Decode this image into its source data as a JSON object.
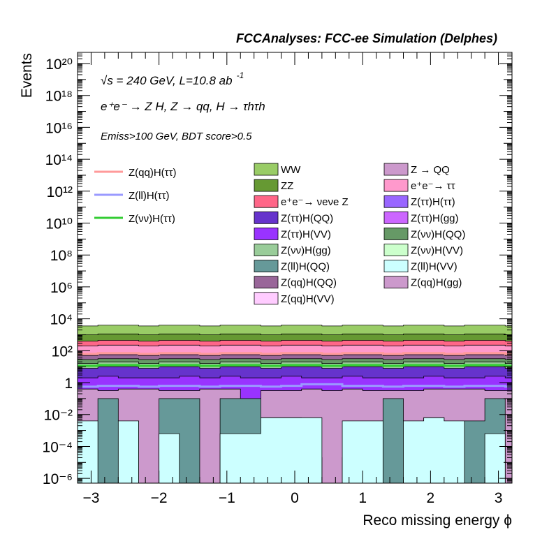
{
  "header": {
    "title": "FCCAnalyses: FCC-ee Simulation (Delphes)"
  },
  "annotations": {
    "line1": "√s = 240 GeV, L=10.8 ab",
    "line1_sup": "-1",
    "line2": "e⁺e⁻ → Z H, Z → qq, H → τhτh",
    "line3": "Emiss>100 GeV, BDT score>0.5"
  },
  "axes": {
    "xlabel": "Reco missing energy ϕ",
    "ylabel": "Events",
    "x_ticks": [
      "−3",
      "−2",
      "−1",
      "0",
      "1",
      "2",
      "3"
    ],
    "y_ticks": [
      "10⁻⁶",
      "10⁻⁴",
      "10⁻²",
      "1",
      "10²",
      "10⁴",
      "10⁶",
      "10⁸",
      "10¹⁰",
      "10¹²",
      "10¹⁴",
      "10¹⁶",
      "10¹⁸",
      "10²⁰"
    ]
  },
  "legend": {
    "signals": [
      {
        "label": "Z(qq)H(ττ)",
        "color": "#ff9a9a"
      },
      {
        "label": "Z(ll)H(ττ)",
        "color": "#9a9aff"
      },
      {
        "label": "Z(νν)H(ττ)",
        "color": "#33cc33"
      }
    ],
    "backgrounds_col1": [
      {
        "label": "WW",
        "color": "#99cc66"
      },
      {
        "label": "ZZ",
        "color": "#669933"
      },
      {
        "label": "e⁺e⁻→ νeνe Z",
        "color": "#ff6688"
      },
      {
        "label": "Z(ττ)H(QQ)",
        "color": "#6633cc"
      },
      {
        "label": "Z(ττ)H(VV)",
        "color": "#9933ff"
      },
      {
        "label": "Z(νν)H(gg)",
        "color": "#99cc99"
      },
      {
        "label": "Z(ll)H(QQ)",
        "color": "#669999"
      },
      {
        "label": "Z(qq)H(QQ)",
        "color": "#996699"
      },
      {
        "label": "Z(qq)H(VV)",
        "color": "#ffccff"
      }
    ],
    "backgrounds_col2": [
      {
        "label": "Z → QQ",
        "color": "#cc99cc"
      },
      {
        "label": "e⁺e⁻→ ττ",
        "color": "#ff99cc"
      },
      {
        "label": "Z(ττ)H(ττ)",
        "color": "#9966ff"
      },
      {
        "label": "Z(ττ)H(gg)",
        "color": "#cc66ff"
      },
      {
        "label": "Z(νν)H(QQ)",
        "color": "#669966"
      },
      {
        "label": "Z(νν)H(VV)",
        "color": "#ccffcc"
      },
      {
        "label": "Z(ll)H(VV)",
        "color": "#ccffff"
      },
      {
        "label": "Z(qq)H(gg)",
        "color": "#cc99cc"
      }
    ]
  },
  "chart_data": {
    "type": "area",
    "title": "FCCAnalyses: FCC-ee Simulation (Delphes)",
    "xlabel": "Reco missing energy ϕ",
    "ylabel": "Events",
    "xlim": [
      -3.2,
      3.2
    ],
    "ylim_log10": [
      -6.3,
      20.7
    ],
    "log_y": true,
    "bin_edges": [
      -3.2,
      -2.9,
      -2.6,
      -2.3,
      -2.0,
      -1.7,
      -1.4,
      -1.1,
      -0.8,
      -0.5,
      -0.2,
      0.1,
      0.4,
      0.7,
      1.0,
      1.3,
      1.6,
      1.9,
      2.2,
      2.5,
      2.8,
      3.1,
      3.2
    ],
    "stack_tops_log10": [
      {
        "name": "Z(ll)H(VV)",
        "color": "#ccffff",
        "values": [
          -2.4,
          -6.5,
          -2.4,
          -6.5,
          -3.2,
          -6.5,
          -6.5,
          -3.2,
          -3.2,
          -2.2,
          -2.2,
          -2.2,
          -6.5,
          -2.4,
          -2.4,
          -6.5,
          -2.4,
          -2.2,
          -2.4,
          -6.5,
          -3.2,
          -6.5
        ]
      },
      {
        "name": "Z(ll)H(QQ)",
        "color": "#669999",
        "values": [
          -2.4,
          -1.0,
          -2.4,
          -6.5,
          -1.0,
          -1.0,
          -6.5,
          -1.0,
          -1.0,
          -2.2,
          -2.2,
          -4.7,
          -6.5,
          -4.7,
          -2.4,
          -1.0,
          -2.4,
          -2.2,
          -2.4,
          -2.4,
          -1.0,
          -6.5
        ]
      },
      {
        "name": "Z(qq)H(gg)",
        "color": "#cc99cc",
        "values": [
          -0.4,
          -0.5,
          -0.4,
          -0.4,
          -0.5,
          -0.5,
          -0.4,
          -0.4,
          -1.0,
          -0.5,
          -0.5,
          -0.4,
          -0.5,
          -0.4,
          -0.5,
          -0.5,
          -0.5,
          -0.4,
          -0.4,
          -0.4,
          -0.5,
          -0.5
        ]
      },
      {
        "name": "Z(ττ)H(VV)",
        "color": "#9933ff",
        "values": [
          0.3,
          0.4,
          0.3,
          0.3,
          0.3,
          0.4,
          0.3,
          0.4,
          0.3,
          0.3,
          0.4,
          0.3,
          0.3,
          0.4,
          0.3,
          0.3,
          0.3,
          0.4,
          0.3,
          0.3,
          0.4,
          0.3
        ]
      },
      {
        "name": "Z(ττ)H(QQ)",
        "color": "#6633cc",
        "values": [
          0.9,
          1.0,
          1.0,
          0.9,
          1.0,
          1.0,
          0.9,
          1.0,
          1.0,
          0.9,
          1.0,
          1.0,
          0.9,
          1.0,
          1.0,
          0.9,
          1.0,
          1.0,
          0.9,
          1.0,
          1.0,
          0.9
        ]
      },
      {
        "name": "Z(νν)H(gg)",
        "color": "#99cc99",
        "values": [
          1.2,
          1.3,
          1.3,
          1.2,
          1.3,
          1.3,
          1.2,
          1.3,
          1.3,
          1.2,
          1.3,
          1.3,
          1.2,
          1.3,
          1.3,
          1.2,
          1.3,
          1.3,
          1.2,
          1.3,
          1.3,
          1.2
        ]
      },
      {
        "name": "Z(νν)H(QQ)",
        "color": "#669966",
        "values": [
          1.45,
          1.5,
          1.5,
          1.45,
          1.5,
          1.5,
          1.45,
          1.5,
          1.5,
          1.45,
          1.5,
          1.5,
          1.45,
          1.5,
          1.5,
          1.45,
          1.5,
          1.5,
          1.45,
          1.5,
          1.5,
          1.45
        ]
      },
      {
        "name": "Z(qq)H(QQ)",
        "color": "#996699",
        "values": [
          1.7,
          1.75,
          1.75,
          1.7,
          1.75,
          1.75,
          1.7,
          1.75,
          1.75,
          1.7,
          1.75,
          1.75,
          1.7,
          1.75,
          1.75,
          1.7,
          1.75,
          1.75,
          1.7,
          1.75,
          1.75,
          1.7
        ]
      },
      {
        "name": "e⁺e⁻→ ττ",
        "color": "#ff99cc",
        "values": [
          2.3,
          2.35,
          2.35,
          2.3,
          2.35,
          2.35,
          2.3,
          2.35,
          2.35,
          2.3,
          2.35,
          2.35,
          2.3,
          2.35,
          2.35,
          2.3,
          2.35,
          2.35,
          2.3,
          2.35,
          2.35,
          2.3
        ]
      },
      {
        "name": "e⁺e⁻→ νeνe Z",
        "color": "#ff6688",
        "values": [
          2.6,
          2.65,
          2.65,
          2.6,
          2.65,
          2.65,
          2.6,
          2.65,
          2.65,
          2.6,
          2.65,
          2.65,
          2.6,
          2.65,
          2.65,
          2.6,
          2.65,
          2.65,
          2.6,
          2.65,
          2.65,
          2.6
        ]
      },
      {
        "name": "ZZ",
        "color": "#669933",
        "values": [
          3.0,
          3.05,
          3.05,
          3.0,
          3.05,
          3.05,
          3.0,
          3.05,
          3.05,
          3.0,
          3.05,
          3.05,
          3.0,
          3.05,
          3.05,
          3.0,
          3.05,
          3.05,
          3.0,
          3.05,
          3.05,
          3.0
        ]
      },
      {
        "name": "WW",
        "color": "#99cc66",
        "values": [
          3.55,
          3.6,
          3.6,
          3.55,
          3.6,
          3.6,
          3.55,
          3.6,
          3.6,
          3.55,
          3.6,
          3.6,
          3.55,
          3.6,
          3.6,
          3.55,
          3.6,
          3.6,
          3.55,
          3.6,
          3.6,
          3.55
        ]
      }
    ],
    "signal_lines_log10": [
      {
        "name": "Z(qq)H(ττ)",
        "color": "#ff9a9a",
        "values": [
          1.8,
          1.85,
          1.85,
          1.8,
          1.85,
          1.85,
          1.8,
          1.85,
          1.85,
          1.8,
          1.85,
          1.85,
          1.8,
          1.85,
          1.85,
          1.8,
          1.85,
          1.85,
          1.8,
          1.85,
          1.85,
          1.8
        ]
      },
      {
        "name": "Z(ll)H(ττ)",
        "color": "#9a9aff",
        "values": [
          -0.25,
          -0.2,
          -0.2,
          -0.25,
          -0.2,
          -0.2,
          -0.25,
          -0.2,
          -0.2,
          -0.25,
          -0.2,
          -0.1,
          -0.1,
          -0.2,
          -0.2,
          -0.25,
          -0.2,
          -0.2,
          -0.25,
          -0.2,
          -0.2,
          -0.25
        ]
      },
      {
        "name": "Z(νν)H(ττ)",
        "color": "#33cc33",
        "values": [
          1.05,
          1.1,
          1.1,
          1.05,
          1.1,
          1.1,
          1.05,
          1.1,
          1.1,
          1.05,
          1.1,
          1.1,
          1.05,
          1.1,
          1.1,
          1.05,
          1.1,
          1.1,
          1.05,
          1.1,
          1.1,
          1.05
        ]
      }
    ]
  }
}
